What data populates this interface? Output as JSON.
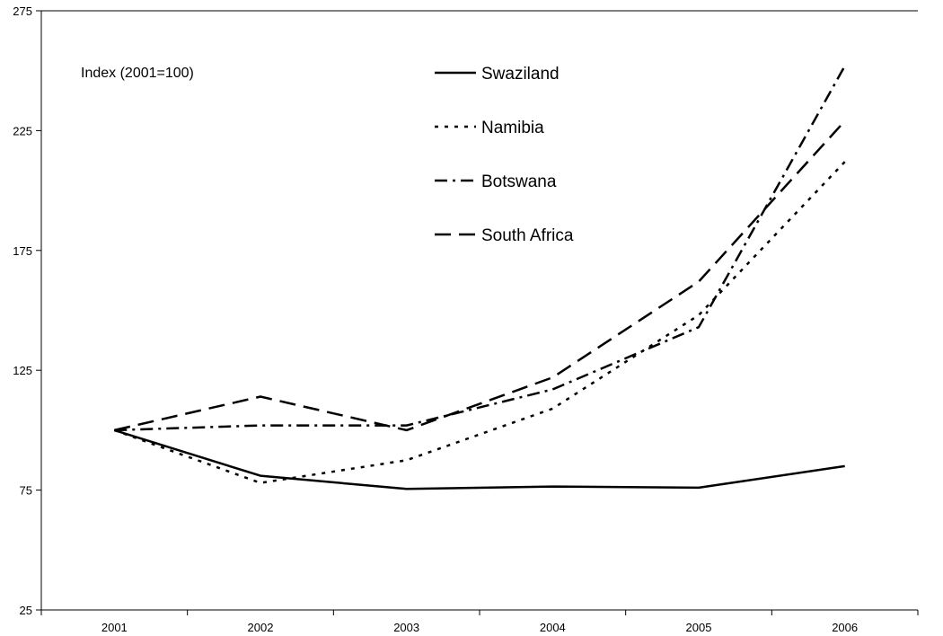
{
  "chart_data": {
    "type": "line",
    "title": "",
    "xlabel": "",
    "ylabel": "",
    "annotation": "Index (2001=100)",
    "categories": [
      "2001",
      "2002",
      "2003",
      "2004",
      "2005",
      "2006"
    ],
    "ylim": [
      25,
      275
    ],
    "yticks": [
      25,
      75,
      125,
      175,
      225,
      275
    ],
    "grid": false,
    "legend_position": "top-center",
    "series": [
      {
        "name": "Swaziland",
        "style": "solid",
        "color": "#000000",
        "values": [
          100,
          81,
          75.5,
          76.5,
          76,
          85
        ]
      },
      {
        "name": "Namibia",
        "style": "dotted",
        "color": "#000000",
        "values": [
          100,
          78,
          87.5,
          109,
          148,
          212
        ]
      },
      {
        "name": "Botswana",
        "style": "dashdot",
        "color": "#000000",
        "values": [
          100,
          102,
          102,
          117,
          143,
          252
        ]
      },
      {
        "name": "South Africa",
        "style": "dashed",
        "color": "#000000",
        "values": [
          100,
          114,
          100,
          122,
          162,
          229
        ]
      }
    ]
  }
}
